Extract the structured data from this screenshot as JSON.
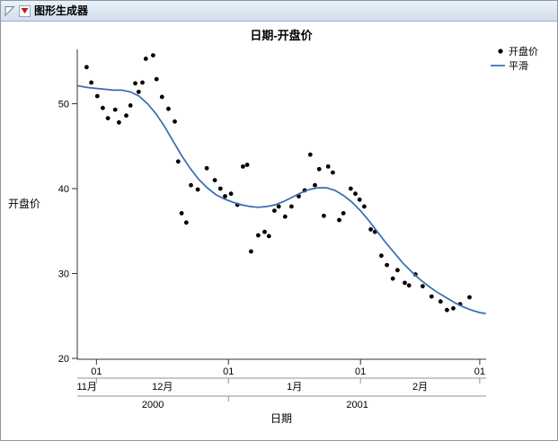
{
  "window": {
    "title": "图形生成器"
  },
  "chart_data": {
    "type": "scatter",
    "title": "日期-开盘价",
    "xlabel": "日期",
    "ylabel": "开盘价",
    "x_unit": "days_since_2000-12-01",
    "xlim": [
      -4.5,
      91.5
    ],
    "ylim": [
      19.9,
      56.4
    ],
    "grid": false,
    "legend_position": "top-right",
    "yticks": [
      20,
      30,
      40,
      50
    ],
    "x_day_ticks": [
      {
        "day": 0,
        "label": "01"
      },
      {
        "day": 31,
        "label": "01"
      },
      {
        "day": 62,
        "label": "01"
      },
      {
        "day": 90,
        "label": "01"
      }
    ],
    "month_spans": [
      {
        "from": -4.5,
        "to": 0,
        "label": "11月"
      },
      {
        "from": 0,
        "to": 31,
        "label": "12月"
      },
      {
        "from": 31,
        "to": 62,
        "label": "1月"
      },
      {
        "from": 62,
        "to": 90,
        "label": "2月"
      }
    ],
    "year_spans": [
      {
        "from": -4.5,
        "to": 31,
        "label": "2000"
      },
      {
        "from": 31,
        "to": 91.5,
        "label": "2001"
      }
    ],
    "series": [
      {
        "name": "开盘价",
        "type": "scatter",
        "color": "#000000",
        "points": [
          [
            -2.3,
            54.3
          ],
          [
            -1.2,
            52.5
          ],
          [
            0.2,
            50.9
          ],
          [
            1.5,
            49.5
          ],
          [
            2.7,
            48.3
          ],
          [
            4.4,
            49.3
          ],
          [
            5.3,
            47.8
          ],
          [
            7.0,
            48.6
          ],
          [
            8.0,
            49.8
          ],
          [
            9.1,
            52.4
          ],
          [
            9.9,
            51.4
          ],
          [
            10.8,
            52.5
          ],
          [
            11.6,
            55.3
          ],
          [
            13.3,
            55.7
          ],
          [
            14.1,
            52.9
          ],
          [
            15.4,
            50.8
          ],
          [
            16.9,
            49.4
          ],
          [
            18.4,
            47.9
          ],
          [
            19.2,
            43.2
          ],
          [
            20.0,
            37.1
          ],
          [
            21.1,
            36.0
          ],
          [
            22.2,
            40.4
          ],
          [
            23.8,
            39.9
          ],
          [
            25.9,
            42.4
          ],
          [
            27.8,
            41.0
          ],
          [
            29.1,
            40.0
          ],
          [
            30.2,
            39.1
          ],
          [
            31.6,
            39.4
          ],
          [
            33.1,
            38.1
          ],
          [
            34.4,
            42.6
          ],
          [
            35.4,
            42.8
          ],
          [
            36.3,
            32.6
          ],
          [
            38.0,
            34.5
          ],
          [
            39.5,
            34.9
          ],
          [
            40.5,
            34.4
          ],
          [
            41.8,
            37.4
          ],
          [
            42.8,
            37.9
          ],
          [
            44.3,
            36.7
          ],
          [
            45.8,
            37.9
          ],
          [
            47.5,
            39.1
          ],
          [
            48.9,
            39.8
          ],
          [
            50.2,
            44.0
          ],
          [
            51.3,
            40.4
          ],
          [
            52.3,
            42.3
          ],
          [
            53.4,
            36.8
          ],
          [
            54.4,
            42.6
          ],
          [
            55.5,
            41.9
          ],
          [
            57.0,
            36.3
          ],
          [
            58.0,
            37.1
          ],
          [
            59.7,
            40.0
          ],
          [
            60.8,
            39.4
          ],
          [
            61.8,
            38.7
          ],
          [
            62.9,
            37.9
          ],
          [
            64.4,
            35.2
          ],
          [
            65.4,
            34.9
          ],
          [
            66.9,
            32.1
          ],
          [
            68.2,
            31.0
          ],
          [
            69.6,
            29.4
          ],
          [
            70.7,
            30.4
          ],
          [
            72.4,
            28.9
          ],
          [
            73.4,
            28.6
          ],
          [
            74.9,
            29.9
          ],
          [
            76.6,
            28.5
          ],
          [
            78.7,
            27.3
          ],
          [
            80.8,
            26.7
          ],
          [
            82.3,
            25.7
          ],
          [
            83.8,
            25.9
          ],
          [
            85.4,
            26.4
          ],
          [
            87.6,
            27.2
          ]
        ]
      },
      {
        "name": "平滑",
        "type": "line",
        "color": "#396ab1",
        "points": [
          [
            -4.3,
            52.1
          ],
          [
            -2,
            51.9
          ],
          [
            0,
            51.8
          ],
          [
            2,
            51.7
          ],
          [
            4,
            51.6
          ],
          [
            6,
            51.6
          ],
          [
            8,
            51.4
          ],
          [
            10,
            50.9
          ],
          [
            12,
            50.0
          ],
          [
            14,
            48.8
          ],
          [
            16,
            47.3
          ],
          [
            18,
            45.6
          ],
          [
            20,
            43.9
          ],
          [
            22,
            42.4
          ],
          [
            24,
            41.1
          ],
          [
            26,
            40.1
          ],
          [
            28,
            39.3
          ],
          [
            30,
            38.8
          ],
          [
            32,
            38.4
          ],
          [
            34,
            38.1
          ],
          [
            36,
            37.9
          ],
          [
            38,
            37.8
          ],
          [
            40,
            37.9
          ],
          [
            42,
            38.1
          ],
          [
            44,
            38.5
          ],
          [
            46,
            39.0
          ],
          [
            48,
            39.5
          ],
          [
            50,
            39.9
          ],
          [
            52,
            40.1
          ],
          [
            54,
            40.1
          ],
          [
            56,
            39.8
          ],
          [
            58,
            39.2
          ],
          [
            60,
            38.4
          ],
          [
            62,
            37.4
          ],
          [
            64,
            36.2
          ],
          [
            66,
            34.9
          ],
          [
            68,
            33.6
          ],
          [
            70,
            32.4
          ],
          [
            72,
            31.2
          ],
          [
            74,
            30.2
          ],
          [
            76,
            29.3
          ],
          [
            78,
            28.5
          ],
          [
            80,
            27.8
          ],
          [
            82,
            27.2
          ],
          [
            84,
            26.6
          ],
          [
            86,
            26.1
          ],
          [
            88,
            25.7
          ],
          [
            90,
            25.4
          ],
          [
            91.3,
            25.3
          ]
        ]
      }
    ]
  }
}
